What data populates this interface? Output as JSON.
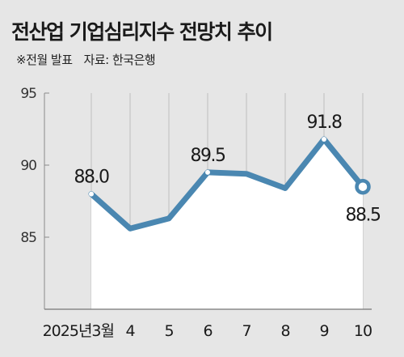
{
  "header": {
    "title": "전산업 기업심리지수 전망치 추이",
    "note": "※전월 발표",
    "source": "자료: 한국은행"
  },
  "colors": {
    "background": "#e6e6e6",
    "plot_area": "#ffffff",
    "line": "#4a87b1",
    "grid": "#bdbdbd"
  },
  "chart_data": {
    "type": "line",
    "title": "전산업 기업심리지수 전망치 추이",
    "xlabel": "",
    "ylabel": "",
    "categories": [
      "2025년3월",
      "4",
      "5",
      "6",
      "7",
      "8",
      "9",
      "10"
    ],
    "series": [
      {
        "values": [
          88.0,
          85.6,
          86.3,
          89.5,
          89.4,
          88.4,
          91.8,
          88.5
        ]
      }
    ],
    "data_labels": [
      "88.0",
      "",
      "",
      "89.5",
      "",
      "",
      "91.8",
      "88.5"
    ],
    "y_ticks": [
      "85",
      "90",
      "95"
    ],
    "ylim": [
      80,
      95
    ],
    "grid": "vertical"
  }
}
